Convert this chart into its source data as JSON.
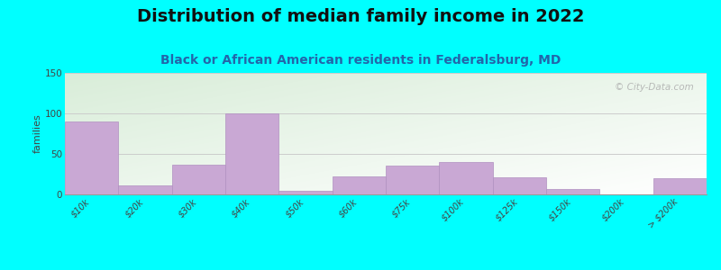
{
  "title": "Distribution of median family income in 2022",
  "subtitle": "Black or African American residents in Federalsburg, MD",
  "ylabel": "families",
  "categories": [
    "$10k",
    "$20k",
    "$30k",
    "$40k",
    "$50k",
    "$60k",
    "$75k",
    "$100k",
    "$125k",
    "$150k",
    "$200k",
    "> $200k"
  ],
  "values": [
    90,
    11,
    37,
    100,
    4,
    22,
    36,
    40,
    21,
    7,
    0,
    20
  ],
  "bar_color": "#c9a8d4",
  "bar_edge_color": "#b090c0",
  "ylim": [
    0,
    150
  ],
  "yticks": [
    0,
    50,
    100,
    150
  ],
  "background_color": "#00ffff",
  "plot_bg_topleft": "#d8ecd0",
  "plot_bg_bottomright": "#ffffff",
  "title_fontsize": 14,
  "subtitle_fontsize": 10,
  "ylabel_fontsize": 8,
  "tick_fontsize": 7,
  "watermark_text": "© City-Data.com",
  "grid_color": "#cccccc",
  "subtitle_color": "#2266aa"
}
